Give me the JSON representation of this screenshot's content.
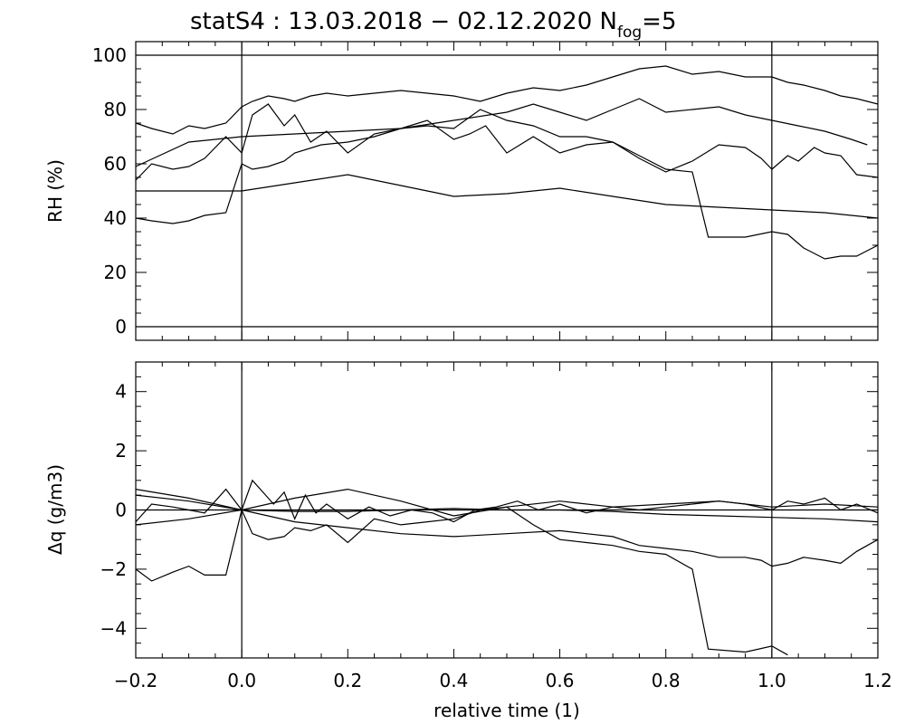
{
  "chart_data": [
    {
      "type": "line",
      "title": "statS4 : 13.03.2018 − 02.12.2020 N",
      "title_subscript": "fog",
      "title_suffix": "=5",
      "xlabel": "",
      "ylabel": "RH (%)",
      "xlim": [
        -0.2,
        1.2
      ],
      "ylim": [
        -5,
        105
      ],
      "yticks": [
        "0",
        "20",
        "40",
        "60",
        "80",
        "100"
      ],
      "reference_lines": {
        "horizontal": [
          0,
          100
        ],
        "vertical": [
          0.0,
          1.0
        ]
      },
      "series": [
        {
          "x": [
            -0.2,
            -0.17,
            -0.13,
            -0.1,
            -0.07,
            -0.03,
            0.0,
            0.02,
            0.05,
            0.08,
            0.1,
            0.13,
            0.16,
            0.2,
            0.25,
            0.3,
            0.35,
            0.4,
            0.45,
            0.5,
            0.55,
            0.6,
            0.65,
            0.7,
            0.75,
            0.8,
            0.85,
            0.9,
            0.95,
            1.0,
            1.03,
            1.06,
            1.1,
            1.13,
            1.16,
            1.2
          ],
          "y": [
            75,
            73,
            71,
            74,
            73,
            75,
            81,
            83,
            85,
            84,
            83,
            85,
            86,
            85,
            86,
            87,
            86,
            85,
            83,
            86,
            88,
            87,
            89,
            92,
            95,
            96,
            93,
            94,
            92,
            92,
            90,
            89,
            87,
            85,
            84,
            82
          ]
        },
        {
          "x": [
            -0.2,
            -0.1,
            0.0,
            0.1,
            0.2,
            0.3,
            0.4,
            0.5,
            0.55,
            0.6,
            0.65,
            0.7,
            0.75,
            0.8,
            0.85,
            0.9,
            0.95,
            1.0,
            1.05,
            1.1,
            1.15,
            1.18
          ],
          "y": [
            59,
            68,
            70,
            71,
            72,
            73,
            76,
            79,
            82,
            79,
            76,
            80,
            84,
            79,
            80,
            81,
            78,
            76,
            74,
            72,
            69,
            67
          ]
        },
        {
          "x": [
            -0.2,
            -0.17,
            -0.13,
            -0.1,
            -0.07,
            -0.03,
            0.0,
            0.02,
            0.05,
            0.08,
            0.1,
            0.13,
            0.16,
            0.2,
            0.25,
            0.3,
            0.35,
            0.4,
            0.43,
            0.46,
            0.5,
            0.55,
            0.6,
            0.65,
            0.7,
            0.75,
            0.8,
            0.85,
            0.9,
            0.95,
            0.98,
            1.0,
            1.03,
            1.05,
            1.08,
            1.1,
            1.13,
            1.16,
            1.2
          ],
          "y": [
            54,
            60,
            58,
            59,
            62,
            70,
            64,
            78,
            82,
            74,
            78,
            68,
            72,
            64,
            71,
            73,
            76,
            69,
            71,
            74,
            64,
            70,
            64,
            67,
            68,
            62,
            57,
            61,
            67,
            66,
            62,
            58,
            63,
            61,
            66,
            64,
            63,
            56,
            55
          ]
        },
        {
          "x": [
            -0.2,
            -0.17,
            -0.13,
            -0.1,
            -0.07,
            -0.03,
            0.0,
            0.02,
            0.05,
            0.08,
            0.1,
            0.15,
            0.2,
            0.25,
            0.3,
            0.35,
            0.4,
            0.45,
            0.5,
            0.55,
            0.6,
            0.65,
            0.7,
            0.75,
            0.8,
            0.85,
            0.88,
            0.95,
            1.0,
            1.03,
            1.06,
            1.1,
            1.13,
            1.16,
            1.2
          ],
          "y": [
            40,
            39,
            38,
            39,
            41,
            42,
            60,
            58,
            59,
            61,
            64,
            67,
            68,
            70,
            73,
            74,
            73,
            80,
            76,
            74,
            70,
            70,
            68,
            63,
            58,
            57,
            33,
            33,
            35,
            34,
            29,
            25,
            26,
            26,
            30
          ]
        },
        {
          "x": [
            -0.2,
            -0.1,
            0.0,
            0.1,
            0.2,
            0.3,
            0.4,
            0.5,
            0.6,
            0.7,
            0.8,
            0.9,
            1.0,
            1.1,
            1.2
          ],
          "y": [
            50,
            50,
            50,
            53,
            56,
            52,
            48,
            49,
            51,
            48,
            45,
            44,
            43,
            42,
            40
          ]
        }
      ]
    },
    {
      "type": "line",
      "title": "",
      "xlabel": "relative time (1)",
      "ylabel": "Δq (g/m3)",
      "xlim": [
        -0.2,
        1.2
      ],
      "ylim": [
        -5,
        5
      ],
      "xticks": [
        "−0.2",
        "0.0",
        "0.2",
        "0.4",
        "0.6",
        "0.8",
        "1.0",
        "1.2"
      ],
      "yticks": [
        "−4",
        "−2",
        "0",
        "2",
        "4"
      ],
      "reference_lines": {
        "horizontal": [
          0
        ],
        "vertical": [
          0.0,
          1.0
        ]
      },
      "series": [
        {
          "x": [
            -0.2,
            -0.1,
            0.0,
            0.1,
            0.2,
            0.3,
            0.4,
            0.5,
            0.6,
            0.7,
            0.8,
            0.9,
            1.0,
            1.1,
            1.2
          ],
          "y": [
            0.7,
            0.4,
            0.0,
            0.4,
            0.7,
            0.3,
            -0.2,
            0.1,
            0.3,
            0.1,
            0.2,
            0.3,
            0.1,
            0.2,
            0.1
          ]
        },
        {
          "x": [
            -0.2,
            -0.1,
            0.0,
            0.1,
            0.2,
            0.3,
            0.4,
            0.5,
            0.6,
            0.7,
            0.8,
            0.9,
            1.0,
            1.1,
            1.2
          ],
          "y": [
            0.5,
            0.3,
            0.0,
            -0.05,
            -0.05,
            0.0,
            0.05,
            0.0,
            0.0,
            -0.05,
            -0.15,
            -0.2,
            -0.25,
            -0.3,
            -0.4
          ]
        },
        {
          "x": [
            -0.2,
            -0.17,
            -0.13,
            -0.1,
            -0.07,
            -0.03,
            0.0,
            0.02,
            0.04,
            0.06,
            0.08,
            0.1,
            0.12,
            0.14,
            0.16,
            0.2,
            0.24,
            0.28,
            0.32,
            0.36,
            0.4,
            0.44,
            0.48,
            0.52,
            0.56,
            0.6,
            0.65,
            0.7,
            0.75,
            0.8,
            0.85,
            0.9,
            0.95,
            1.0,
            1.03,
            1.06,
            1.1,
            1.13,
            1.16,
            1.2
          ],
          "y": [
            -0.4,
            0.2,
            0.1,
            0.0,
            -0.1,
            0.7,
            0.0,
            1.0,
            0.6,
            0.2,
            0.6,
            -0.3,
            0.5,
            -0.1,
            0.2,
            -0.3,
            0.1,
            -0.2,
            0.0,
            -0.1,
            -0.4,
            0.0,
            0.1,
            0.3,
            0.0,
            0.2,
            -0.1,
            0.1,
            0.0,
            0.1,
            0.2,
            0.3,
            0.2,
            0.0,
            0.3,
            0.2,
            0.4,
            0.0,
            0.2,
            -0.1
          ]
        },
        {
          "x": [
            -0.2,
            -0.17,
            -0.13,
            -0.1,
            -0.07,
            -0.03,
            0.0,
            0.02,
            0.05,
            0.08,
            0.1,
            0.13,
            0.16,
            0.2,
            0.25,
            0.3,
            0.35,
            0.4,
            0.45,
            0.5,
            0.55,
            0.6,
            0.65,
            0.7,
            0.75,
            0.8,
            0.85,
            0.88,
            0.95,
            1.0,
            1.03
          ],
          "y": [
            -2.0,
            -2.4,
            -2.1,
            -1.9,
            -2.2,
            -2.2,
            0.0,
            -0.8,
            -1.0,
            -0.9,
            -0.6,
            -0.7,
            -0.5,
            -1.1,
            -0.3,
            -0.5,
            -0.4,
            -0.3,
            0.0,
            0.1,
            -0.5,
            -1.0,
            -1.1,
            -1.2,
            -1.4,
            -1.5,
            -2.0,
            -4.7,
            -4.8,
            -4.6,
            -4.9
          ]
        },
        {
          "x": [
            -0.2,
            -0.1,
            0.0,
            0.1,
            0.2,
            0.3,
            0.4,
            0.5,
            0.6,
            0.65,
            0.7,
            0.75,
            0.8,
            0.85,
            0.9,
            0.95,
            0.98,
            1.0,
            1.03,
            1.06,
            1.1,
            1.13,
            1.16,
            1.2
          ],
          "y": [
            -0.5,
            -0.3,
            0.0,
            -0.4,
            -0.6,
            -0.8,
            -0.9,
            -0.8,
            -0.7,
            -0.8,
            -0.9,
            -1.2,
            -1.3,
            -1.4,
            -1.6,
            -1.6,
            -1.7,
            -1.9,
            -1.8,
            -1.6,
            -1.7,
            -1.8,
            -1.4,
            -1.0
          ]
        }
      ]
    }
  ]
}
